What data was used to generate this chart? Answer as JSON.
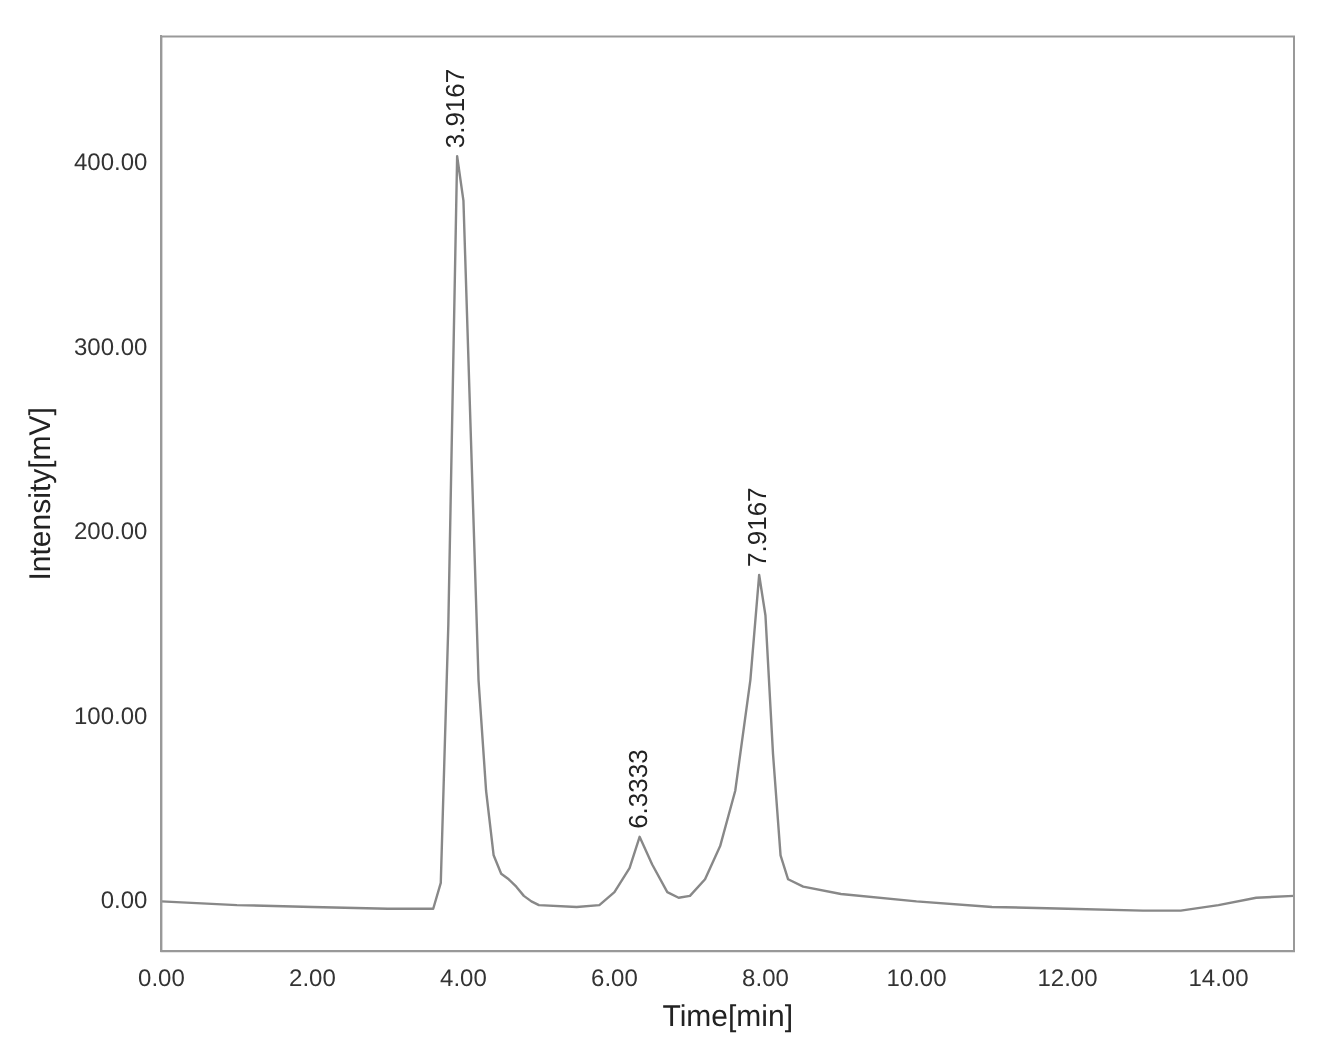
{
  "chart_data": {
    "type": "line",
    "xlabel": "Time[min]",
    "ylabel": "Intensity[mV]",
    "xlim": [
      0,
      15
    ],
    "ylim": [
      -27,
      469
    ],
    "xticks": [
      {
        "value": 0,
        "label": "0.00"
      },
      {
        "value": 2,
        "label": "2.00"
      },
      {
        "value": 4,
        "label": "4.00"
      },
      {
        "value": 6,
        "label": "6.00"
      },
      {
        "value": 8,
        "label": "8.00"
      },
      {
        "value": 10,
        "label": "10.00"
      },
      {
        "value": 12,
        "label": "12.00"
      },
      {
        "value": 14,
        "label": "14.00"
      }
    ],
    "yticks": [
      {
        "value": 0,
        "label": "0.00"
      },
      {
        "value": 100,
        "label": "100.00"
      },
      {
        "value": 200,
        "label": "200.00"
      },
      {
        "value": 300,
        "label": "300.00"
      },
      {
        "value": 400,
        "label": "400.00"
      }
    ],
    "grid": false,
    "legend": false,
    "marker": "none",
    "line_style": "solid",
    "series": [
      {
        "color": "#888888",
        "x": [
          0,
          1,
          2,
          3,
          3.5,
          3.6,
          3.7,
          3.8,
          3.9167,
          4.0,
          4.1,
          4.2,
          4.3,
          4.4,
          4.5,
          4.6,
          4.7,
          4.8,
          4.9,
          5.0,
          5.5,
          5.8,
          6.0,
          6.2,
          6.3333,
          6.5,
          6.7,
          6.85,
          7.0,
          7.2,
          7.4,
          7.6,
          7.8,
          7.9167,
          8.0,
          8.1,
          8.2,
          8.3,
          8.5,
          9,
          10,
          11,
          12,
          13,
          13.5,
          14,
          14.5,
          15
        ],
        "values": [
          0,
          -2,
          -3,
          -4,
          -4,
          -4,
          10,
          150,
          404,
          380,
          250,
          120,
          60,
          25,
          15,
          12,
          8,
          3,
          0,
          -2,
          -3,
          -2,
          5,
          18,
          35,
          20,
          5,
          2,
          3,
          12,
          30,
          60,
          120,
          177,
          155,
          80,
          25,
          12,
          8,
          4,
          0,
          -3,
          -4,
          -5,
          -5,
          -2,
          2,
          3
        ]
      }
    ],
    "annotations": [
      {
        "text": "3.9167",
        "x": 3.9167,
        "y": 404
      },
      {
        "text": "6.3333",
        "x": 6.3333,
        "y": 35
      },
      {
        "text": "7.9167",
        "x": 7.9167,
        "y": 177
      }
    ]
  }
}
